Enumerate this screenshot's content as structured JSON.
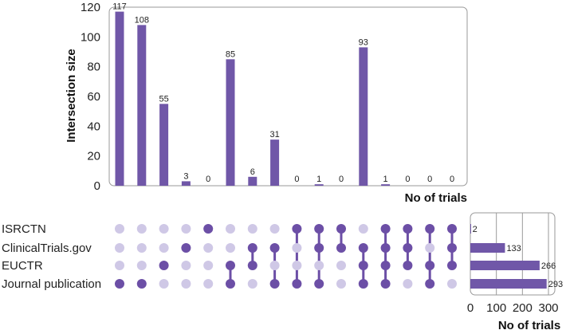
{
  "chart_data": {
    "type": "upset",
    "colors": {
      "bar": "#7057a8",
      "dot_active": "#6c4fa6",
      "dot_inactive": "#cfc8e6"
    },
    "intersections": {
      "ylabel": "Intersection size",
      "yticks": [
        "0",
        "20",
        "40",
        "60",
        "80",
        "100",
        "120"
      ],
      "ylim": [
        0,
        120
      ],
      "values": [
        117,
        108,
        55,
        3,
        0,
        85,
        6,
        31,
        0,
        1,
        0,
        93,
        1,
        0,
        0,
        0
      ],
      "labels": [
        "117",
        "108",
        "55",
        "3",
        "0",
        "85",
        "6",
        "31",
        "0",
        "1",
        "0",
        "93",
        "1",
        "0",
        "0",
        "0"
      ],
      "xlabel": "No of trials",
      "membership": [
        [
          3
        ],
        [
          3
        ],
        [
          2
        ],
        [
          1
        ],
        [
          0
        ],
        [
          2,
          3
        ],
        [
          1,
          2
        ],
        [
          1,
          3
        ],
        [
          0,
          3
        ],
        [
          0,
          1,
          3
        ],
        [
          0,
          1
        ],
        [
          1,
          2,
          3
        ],
        [
          0,
          1,
          2,
          3
        ],
        [
          0,
          1,
          2
        ],
        [
          0,
          2,
          3
        ],
        [
          0,
          1,
          2
        ]
      ]
    },
    "sets": {
      "names": [
        "ISRCTN",
        "ClinicalTrials.gov",
        "EUCTR",
        "Journal publication"
      ],
      "sizes": [
        2,
        133,
        266,
        293
      ],
      "labels": [
        "2",
        "133",
        "266",
        "293"
      ],
      "xlim": [
        0,
        300
      ],
      "xticks": [
        "0",
        "100",
        "200",
        "300"
      ],
      "xlabel": "No of trials"
    }
  }
}
